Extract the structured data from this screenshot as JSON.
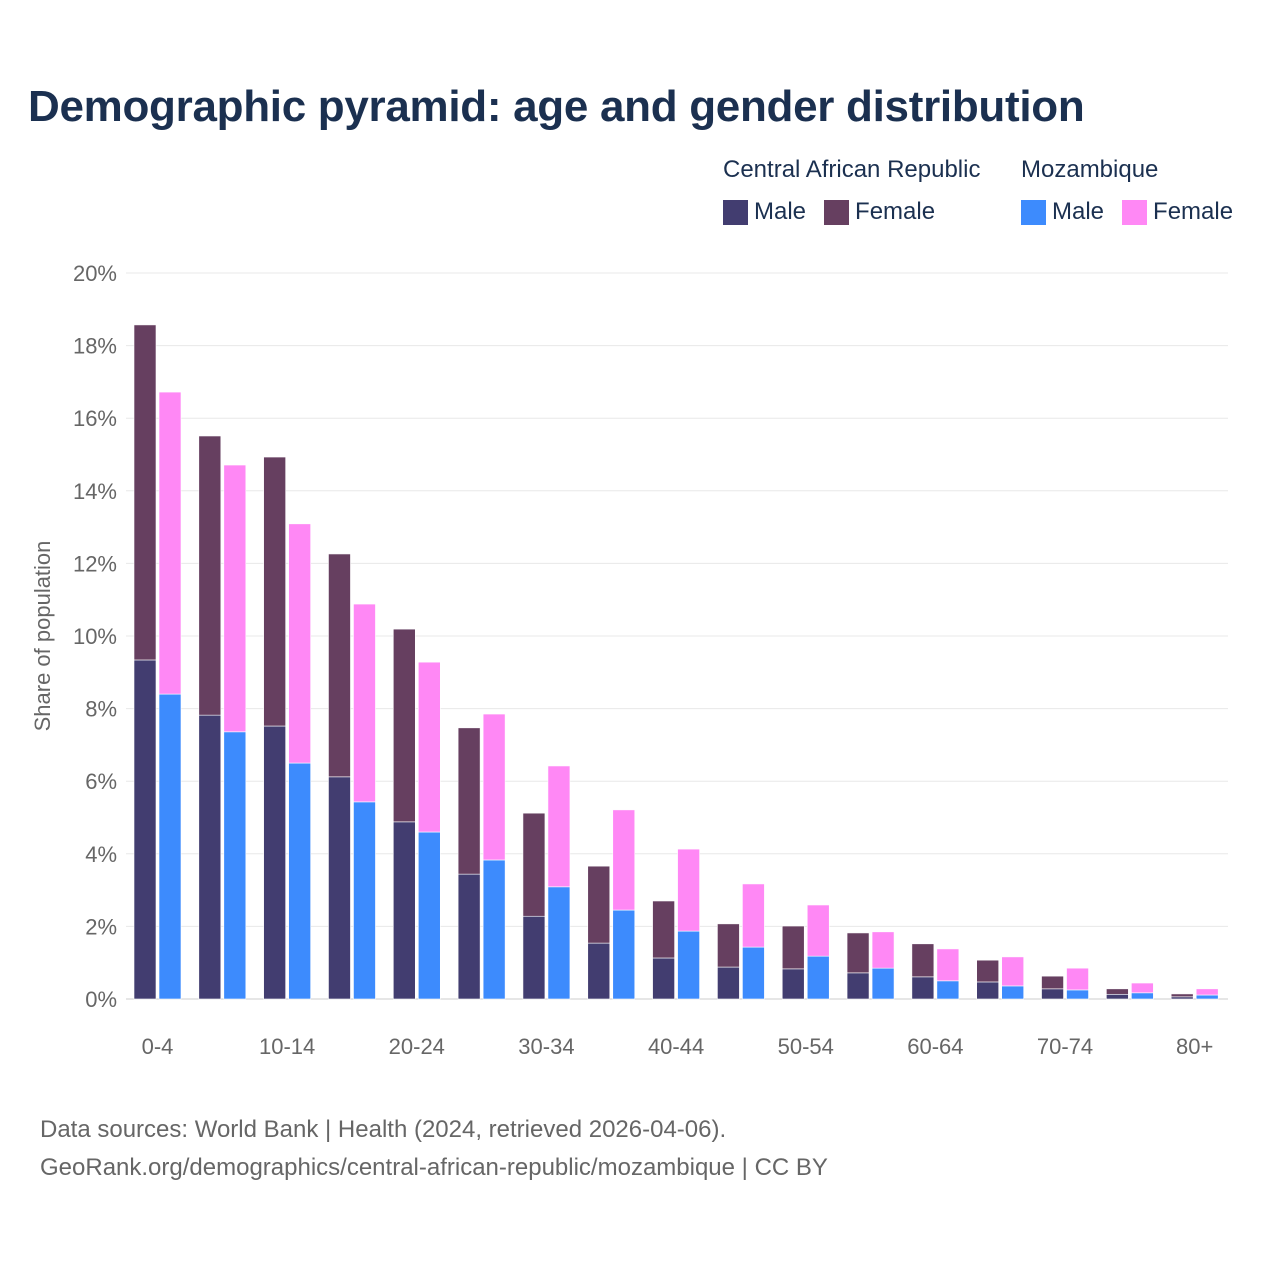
{
  "chart_data": {
    "type": "bar",
    "stacked": true,
    "title": "Demographic pyramid: age and gender distribution",
    "ylabel": "Share of population",
    "xlabel": "",
    "ylim": [
      0,
      20
    ],
    "y_ticks": [
      "0%",
      "2%",
      "4%",
      "6%",
      "8%",
      "10%",
      "12%",
      "14%",
      "16%",
      "18%",
      "20%"
    ],
    "x_tick_labels": [
      "0-4",
      "10-14",
      "20-24",
      "30-34",
      "40-44",
      "50-54",
      "60-64",
      "70-74",
      "80+"
    ],
    "group_count": 17,
    "grid": true,
    "legend_position": "top-right",
    "countries": [
      {
        "name": "Central African Republic",
        "series": [
          {
            "name": "Male",
            "color": "#423d70",
            "values": [
              9.34,
              7.82,
              7.52,
              6.12,
              4.88,
              3.44,
              2.28,
              1.54,
              1.13,
              0.88,
              0.83,
              0.72,
              0.61,
              0.47,
              0.28,
              0.13,
              0.06
            ]
          },
          {
            "name": "Female",
            "color": "#663f60",
            "values": [
              9.23,
              7.69,
              7.41,
              6.14,
              5.31,
              4.03,
              2.84,
              2.12,
              1.57,
              1.19,
              1.18,
              1.1,
              0.91,
              0.6,
              0.35,
              0.15,
              0.08
            ]
          }
        ]
      },
      {
        "name": "Mozambique",
        "series": [
          {
            "name": "Male",
            "color": "#3d8bfd",
            "values": [
              8.4,
              7.36,
              6.5,
              5.43,
              4.6,
              3.83,
              3.09,
              2.45,
              1.87,
              1.43,
              1.18,
              0.85,
              0.5,
              0.36,
              0.25,
              0.17,
              0.11
            ]
          },
          {
            "name": "Female",
            "color": "#ff88f5",
            "values": [
              8.32,
              7.35,
              6.59,
              5.45,
              4.68,
              4.02,
              3.33,
              2.76,
              2.26,
              1.74,
              1.41,
              1.0,
              0.88,
              0.8,
              0.6,
              0.27,
              0.17
            ]
          }
        ]
      }
    ]
  },
  "footer": {
    "source": "Data sources: World Bank | Health (2024, retrieved 2026-04-06).",
    "link": "GeoRank.org/demographics/central-african-republic/mozambique | CC BY"
  }
}
